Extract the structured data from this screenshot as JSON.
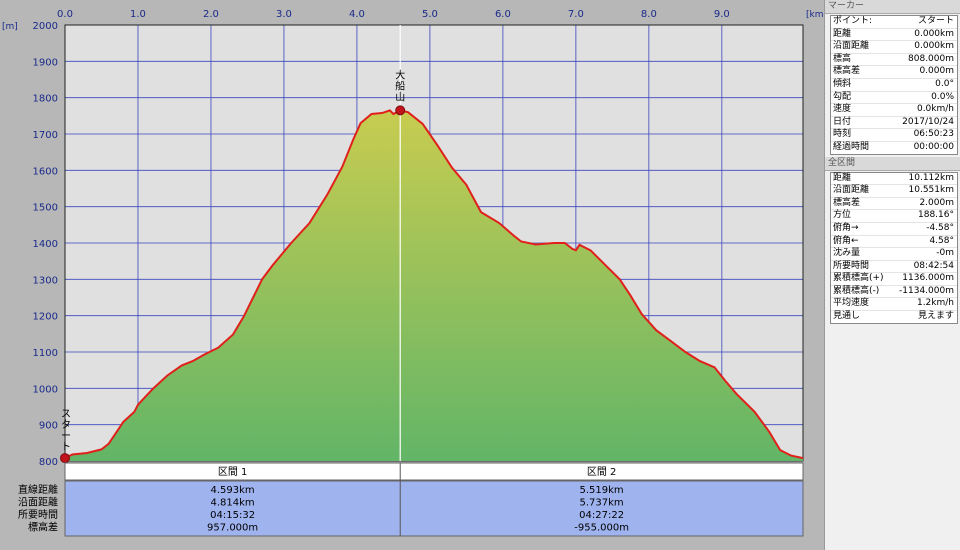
{
  "chart_data": {
    "type": "area",
    "x_unit": "[km]",
    "y_unit": "[m]",
    "xlim": [
      0,
      10.112
    ],
    "ylim": [
      800,
      2000
    ],
    "x_ticks": [
      "0.0",
      "1.0",
      "2.0",
      "3.0",
      "4.0",
      "5.0",
      "6.0",
      "7.0",
      "8.0",
      "9.0"
    ],
    "y_ticks": [
      "800",
      "900",
      "1000",
      "1100",
      "1200",
      "1300",
      "1400",
      "1500",
      "1600",
      "1700",
      "1800",
      "1900",
      "2000"
    ],
    "x": [
      0,
      0.1,
      0.3,
      0.5,
      0.6,
      0.7,
      0.8,
      0.95,
      1.0,
      1.2,
      1.4,
      1.6,
      1.75,
      1.9,
      2.1,
      2.3,
      2.45,
      2.7,
      2.85,
      3.1,
      3.35,
      3.6,
      3.8,
      3.95,
      4.05,
      4.2,
      4.35,
      4.45,
      4.5,
      4.593,
      4.7,
      4.9,
      5.1,
      5.3,
      5.5,
      5.7,
      5.95,
      6.15,
      6.25,
      6.45,
      6.7,
      6.85,
      6.95,
      7.0,
      7.05,
      7.2,
      7.4,
      7.6,
      7.75,
      7.9,
      8.1,
      8.3,
      8.5,
      8.7,
      8.9,
      9.05,
      9.2,
      9.45,
      9.65,
      9.8,
      9.95,
      10.112
    ],
    "y": [
      808,
      818,
      822,
      832,
      848,
      878,
      908,
      935,
      955,
      998,
      1035,
      1063,
      1075,
      1092,
      1112,
      1148,
      1198,
      1300,
      1340,
      1400,
      1455,
      1535,
      1610,
      1685,
      1730,
      1755,
      1758,
      1765,
      1755,
      1765,
      1760,
      1728,
      1670,
      1608,
      1560,
      1485,
      1455,
      1420,
      1404,
      1396,
      1400,
      1400,
      1384,
      1380,
      1395,
      1380,
      1340,
      1300,
      1255,
      1205,
      1160,
      1130,
      1100,
      1075,
      1058,
      1020,
      985,
      935,
      880,
      830,
      815,
      808
    ],
    "line_color": "#e0201a",
    "fill_top_color": "#c8cc50",
    "fill_bottom_color": "#62b567",
    "plot_bg": "#e0e0e0",
    "grid_color": "#3a45c0",
    "markers": [
      {
        "name": "スタート",
        "x": 0,
        "y": 808
      },
      {
        "name": "大船山",
        "x": 4.593,
        "y": 1765
      }
    ],
    "sections": {
      "row_labels": [
        "直線距離",
        "沿面距離",
        "所要時間",
        "標高差"
      ],
      "items": [
        {
          "name": "区間 1",
          "values": [
            "4.593km",
            "4.814km",
            "04:15:32",
            "957.000m"
          ]
        },
        {
          "name": "区間 2",
          "values": [
            "5.519km",
            "5.737km",
            "04:27:22",
            "-955.000m"
          ]
        }
      ]
    }
  },
  "marker_panel": {
    "title": "マーカー",
    "rows": [
      {
        "k": "ポイント:",
        "v": "スタート"
      },
      {
        "k": "距離",
        "v": "0.000km"
      },
      {
        "k": "沿面距離",
        "v": "0.000km"
      },
      {
        "k": "標高",
        "v": "808.000m"
      },
      {
        "k": "標高差",
        "v": "0.000m"
      },
      {
        "k": "傾斜",
        "v": "0.0°"
      },
      {
        "k": "勾配",
        "v": "0.0%"
      },
      {
        "k": "速度",
        "v": "0.0km/h"
      },
      {
        "k": "日付",
        "v": "2017/10/24"
      },
      {
        "k": "時刻",
        "v": "06:50:23"
      },
      {
        "k": "経過時間",
        "v": "00:00:00"
      }
    ]
  },
  "total_panel": {
    "title": "全区間",
    "rows": [
      {
        "k": "距離",
        "v": "10.112km"
      },
      {
        "k": "沿面距離",
        "v": "10.551km"
      },
      {
        "k": "標高差",
        "v": "2.000m"
      },
      {
        "k": "方位",
        "v": "188.16°"
      },
      {
        "k": "俯角→",
        "v": "-4.58°"
      },
      {
        "k": "俯角←",
        "v": "4.58°"
      },
      {
        "k": "沈み量",
        "v": "-0m"
      },
      {
        "k": "所要時間",
        "v": "08:42:54"
      },
      {
        "k": "累積標高(+)",
        "v": "1136.000m"
      },
      {
        "k": "累積標高(-)",
        "v": "-1134.000m"
      },
      {
        "k": "平均速度",
        "v": "1.2km/h"
      },
      {
        "k": "見通し",
        "v": "見えます"
      }
    ]
  }
}
